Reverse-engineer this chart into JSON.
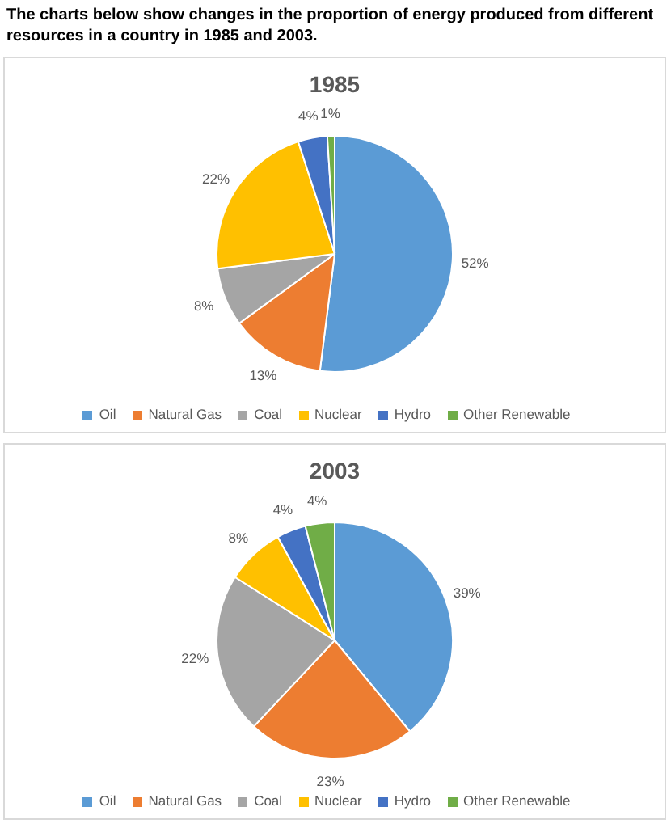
{
  "chart_data": [
    {
      "type": "pie",
      "title": "1985",
      "annotations": [
        "The charts below show changes in the proportion of energy produced from different resources in a country in 1985 and 2003."
      ],
      "categories": [
        "Oil",
        "Natural Gas",
        "Coal",
        "Nuclear",
        "Hydro",
        "Other Renewable"
      ],
      "values": [
        52,
        13,
        8,
        22,
        4,
        1
      ],
      "colors": [
        "#5b9bd5",
        "#ed7d31",
        "#a5a5a5",
        "#ffc000",
        "#4472c4",
        "#70ad47"
      ],
      "value_labels": [
        "52%",
        "13%",
        "8%",
        "22%",
        "4%",
        "1%"
      ],
      "legend": "bottom"
    },
    {
      "type": "pie",
      "title": "2003",
      "categories": [
        "Oil",
        "Natural Gas",
        "Coal",
        "Nuclear",
        "Hydro",
        "Other Renewable"
      ],
      "values": [
        39,
        23,
        22,
        8,
        4,
        4
      ],
      "colors": [
        "#5b9bd5",
        "#ed7d31",
        "#a5a5a5",
        "#ffc000",
        "#4472c4",
        "#70ad47"
      ],
      "value_labels": [
        "39%",
        "23%",
        "22%",
        "8%",
        "4%",
        "4%"
      ],
      "legend": "bottom"
    }
  ]
}
